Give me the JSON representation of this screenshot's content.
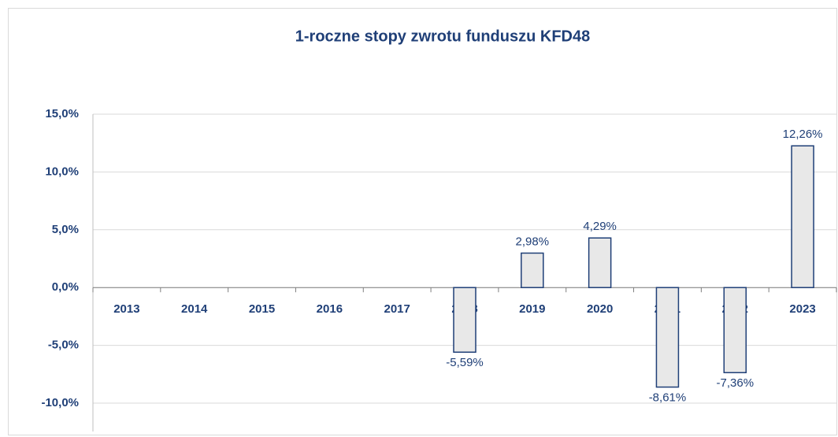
{
  "chart_data": {
    "type": "bar",
    "title": "1-roczne stopy zwrotu funduszu KFD48",
    "categories": [
      "2013",
      "2014",
      "2015",
      "2016",
      "2017",
      "2018",
      "2019",
      "2020",
      "2021",
      "2022",
      "2023"
    ],
    "values": [
      null,
      null,
      null,
      null,
      null,
      -5.59,
      2.98,
      4.29,
      -8.61,
      -7.36,
      12.26
    ],
    "value_labels": [
      null,
      null,
      null,
      null,
      null,
      "-5,59%",
      "2,98%",
      "4,29%",
      "-8,61%",
      "-7,36%",
      "12,26%"
    ],
    "color": "#e8e8e8",
    "edgecolor": "#1f3f77",
    "ylim": [
      -10,
      15
    ],
    "yticks": [
      {
        "value": -10,
        "label": "-10,0%"
      },
      {
        "value": -5,
        "label": "-5,0%"
      },
      {
        "value": 0,
        "label": "0,0%"
      },
      {
        "value": 5,
        "label": "5,0%"
      },
      {
        "value": 10,
        "label": "10,0%"
      },
      {
        "value": 15,
        "label": "15,0%"
      }
    ],
    "grid": true
  }
}
